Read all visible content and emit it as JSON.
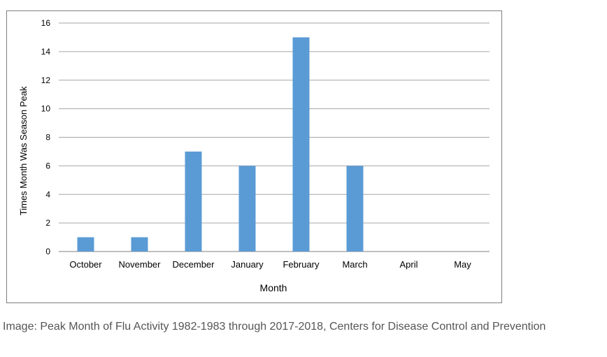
{
  "chart_data": {
    "type": "bar",
    "categories": [
      "October",
      "November",
      "December",
      "January",
      "February",
      "March",
      "April",
      "May"
    ],
    "values": [
      1,
      1,
      7,
      6,
      15,
      6,
      0,
      0
    ],
    "title": "",
    "xlabel": "Month",
    "ylabel": "Times Month Was Season Peak",
    "ylim": [
      0,
      16
    ],
    "yticks": [
      0,
      2,
      4,
      6,
      8,
      10,
      12,
      14,
      16
    ],
    "grid": true,
    "legend": "none",
    "bar_color": "#5b9bd5"
  },
  "caption": "Image: Peak Month of Flu Activity 1982-1983 through 2017-2018, Centers for Disease Control and Prevention",
  "colors": {
    "grid": "#a6a6a6",
    "axis": "#7f7f7f",
    "caption_text": "#555555"
  }
}
